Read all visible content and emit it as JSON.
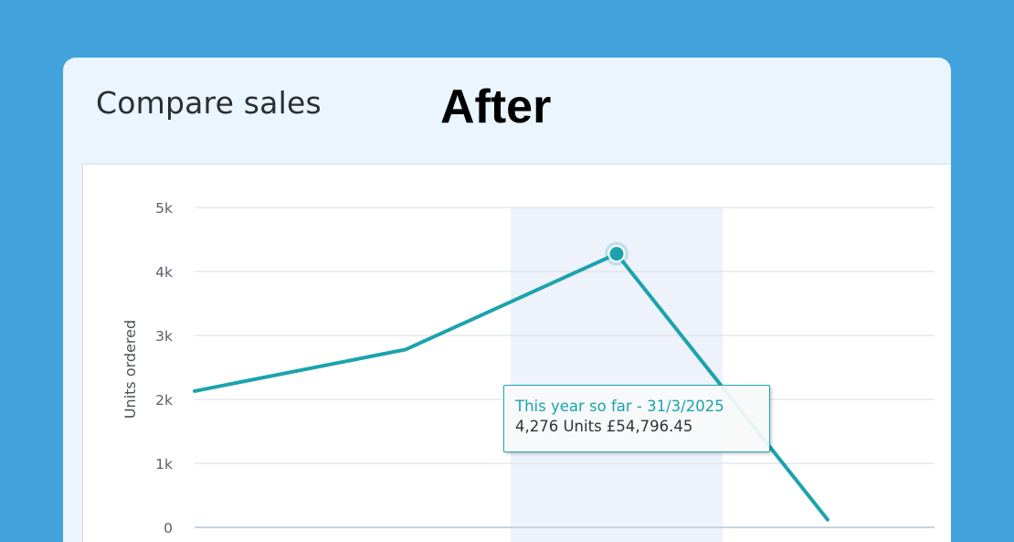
{
  "header": {
    "title": "Compare sales",
    "badge": "After"
  },
  "tooltip": {
    "title": "This year so far - 31/3/2025",
    "body": "4,276 Units £54,796.45"
  },
  "colors": {
    "line": "#1ba3ad",
    "highlight_band": "#eef2fa",
    "grid": "#e3e8ec",
    "tick_text": "#5a6168"
  },
  "chart_data": {
    "type": "line",
    "ylabel": "Units ordered",
    "ylim": [
      0,
      5000
    ],
    "yticks": [
      {
        "value": 0,
        "label": "0"
      },
      {
        "value": 1000,
        "label": "1k"
      },
      {
        "value": 2000,
        "label": "2k"
      },
      {
        "value": 3000,
        "label": "3k"
      },
      {
        "value": 4000,
        "label": "4k"
      },
      {
        "value": 5000,
        "label": "5k"
      }
    ],
    "series": [
      {
        "values": [
          2130,
          2780,
          4276,
          120
        ]
      }
    ],
    "highlighted_index": 2,
    "grid": true
  }
}
